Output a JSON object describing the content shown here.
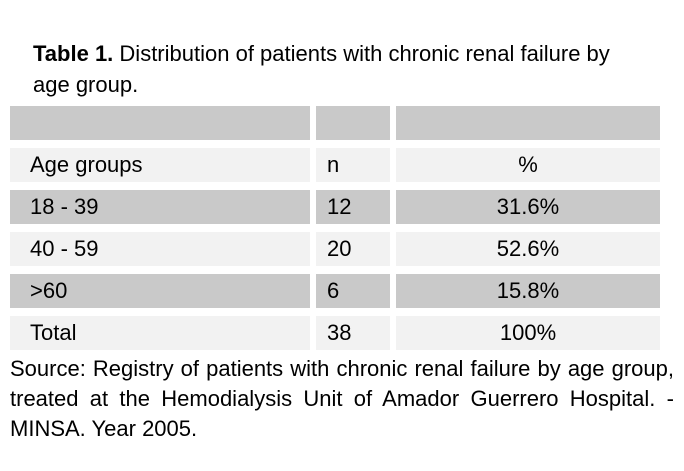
{
  "title": {
    "label": "Table 1.",
    "text": "Distribution of patients with chronic renal failure by age group."
  },
  "table": {
    "columns": [
      "Age groups",
      "n",
      "%"
    ],
    "rows": [
      {
        "age_group": "18 - 39",
        "n": "12",
        "pct": "31.6%"
      },
      {
        "age_group": "40 - 59",
        "n": "20",
        "pct": "52.6%"
      },
      {
        "age_group": ">60",
        "n": "6",
        "pct": "15.8%"
      },
      {
        "age_group": "Total",
        "n": "38",
        "pct": "100%"
      }
    ]
  },
  "source": "Source: Registry of patients with chronic renal failure by age group, treated at the Hemodialysis Unit of Amador Guerrero Hospital. - MINSA. Year 2005.",
  "colors": {
    "row_dark": "#c9c9c9",
    "row_light": "#f2f2f2",
    "text": "#000000",
    "background": "#ffffff"
  }
}
